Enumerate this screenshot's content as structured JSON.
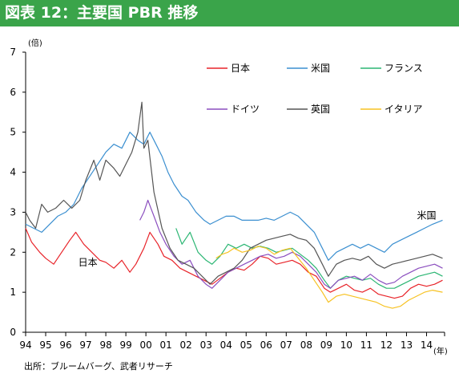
{
  "header": {
    "title": "図表 12：主要国 PBR 推移"
  },
  "source": "出所：ブルームバーグ、武者リサーチ",
  "colors": {
    "日本": "#e8242a",
    "米国": "#3b8fd0",
    "フランス": "#2bb673",
    "ドイツ": "#8b4fbf",
    "英国": "#555555",
    "イタリア": "#f7c222"
  },
  "chart_data": {
    "type": "line",
    "title": "",
    "xlabel": "(年)",
    "ylabel": "(倍)",
    "ylim": [
      0,
      7
    ],
    "xlim": [
      1994,
      2014.9
    ],
    "yticks": [
      "0",
      "1",
      "2",
      "3",
      "4",
      "5",
      "6",
      "7"
    ],
    "xticks": [
      "94",
      "95",
      "96",
      "97",
      "98",
      "99",
      "00",
      "01",
      "02",
      "03",
      "04",
      "05",
      "06",
      "07",
      "08",
      "09",
      "10",
      "11",
      "12",
      "13",
      "14"
    ],
    "annotations": [
      {
        "text": "日本",
        "x": 1997.1,
        "y": 1.75
      },
      {
        "text": "米国",
        "x": 2014.0,
        "y": 2.92
      }
    ],
    "legend_rows": [
      [
        "日本",
        "米国",
        "フランス"
      ],
      [
        "ドイツ",
        "英国",
        "イタリア"
      ]
    ],
    "series": [
      {
        "name": "日本",
        "x": [
          1994,
          1994.3,
          1994.7,
          1995.0,
          1995.4,
          1995.8,
          1996.2,
          1996.5,
          1996.9,
          1997.3,
          1997.7,
          1998.0,
          1998.4,
          1998.8,
          1999.2,
          1999.5,
          1999.9,
          2000.2,
          2000.6,
          2000.9,
          2001.3,
          2001.7,
          2002.1,
          2002.5,
          2002.9,
          2003.3,
          2003.7,
          2004.1,
          2004.5,
          2004.9,
          2005.3,
          2005.7,
          2006.1,
          2006.5,
          2006.9,
          2007.3,
          2007.7,
          2008.1,
          2008.5,
          2008.9,
          2009.2,
          2009.6,
          2010.0,
          2010.4,
          2010.8,
          2011.2,
          2011.6,
          2012.0,
          2012.4,
          2012.8,
          2013.2,
          2013.6,
          2014.0,
          2014.4,
          2014.8
        ],
        "values": [
          2.6,
          2.25,
          2.0,
          1.85,
          1.7,
          2.0,
          2.3,
          2.5,
          2.2,
          2.0,
          1.8,
          1.75,
          1.6,
          1.8,
          1.5,
          1.7,
          2.1,
          2.5,
          2.2,
          1.9,
          1.8,
          1.6,
          1.5,
          1.4,
          1.3,
          1.2,
          1.35,
          1.5,
          1.6,
          1.55,
          1.7,
          1.9,
          1.85,
          1.7,
          1.75,
          1.8,
          1.7,
          1.5,
          1.4,
          1.1,
          1.0,
          1.1,
          1.2,
          1.05,
          1.0,
          1.1,
          0.95,
          0.9,
          0.85,
          0.9,
          1.1,
          1.2,
          1.15,
          1.2,
          1.3
        ]
      },
      {
        "name": "米国",
        "x": [
          1994,
          1994.4,
          1994.8,
          1995.2,
          1995.6,
          1996.0,
          1996.4,
          1996.8,
          1997.2,
          1997.6,
          1998.0,
          1998.4,
          1998.8,
          1999.2,
          1999.6,
          1999.9,
          2000.2,
          2000.5,
          2000.8,
          2001.1,
          2001.4,
          2001.8,
          2002.1,
          2002.5,
          2002.9,
          2003.2,
          2003.6,
          2004.0,
          2004.4,
          2004.8,
          2005.2,
          2005.6,
          2006.0,
          2006.4,
          2006.8,
          2007.2,
          2007.6,
          2008.0,
          2008.4,
          2008.8,
          2009.1,
          2009.5,
          2009.9,
          2010.3,
          2010.7,
          2011.1,
          2011.5,
          2011.9,
          2012.3,
          2012.7,
          2013.1,
          2013.5,
          2013.9,
          2014.3,
          2014.8
        ],
        "values": [
          2.7,
          2.6,
          2.5,
          2.7,
          2.9,
          3.0,
          3.2,
          3.6,
          3.9,
          4.2,
          4.5,
          4.7,
          4.6,
          5.0,
          4.8,
          4.7,
          5.0,
          4.7,
          4.4,
          4.0,
          3.7,
          3.4,
          3.3,
          3.0,
          2.8,
          2.7,
          2.8,
          2.9,
          2.9,
          2.8,
          2.8,
          2.8,
          2.85,
          2.8,
          2.9,
          3.0,
          2.9,
          2.7,
          2.5,
          2.1,
          1.8,
          2.0,
          2.1,
          2.2,
          2.1,
          2.2,
          2.1,
          2.0,
          2.2,
          2.3,
          2.4,
          2.5,
          2.6,
          2.7,
          2.8
        ]
      },
      {
        "name": "フランス",
        "x": [
          2001.5,
          2001.8,
          2002.2,
          2002.6,
          2003.0,
          2003.3,
          2003.7,
          2004.1,
          2004.5,
          2004.9,
          2005.3,
          2005.7,
          2006.1,
          2006.5,
          2006.9,
          2007.3,
          2007.7,
          2008.1,
          2008.5,
          2008.9,
          2009.2,
          2009.6,
          2010.0,
          2010.4,
          2010.8,
          2011.2,
          2011.6,
          2012.0,
          2012.4,
          2012.8,
          2013.2,
          2013.6,
          2014.0,
          2014.4,
          2014.8
        ],
        "values": [
          2.6,
          2.2,
          2.5,
          2.0,
          1.8,
          1.7,
          1.9,
          2.2,
          2.1,
          2.2,
          2.1,
          2.15,
          2.1,
          2.0,
          2.05,
          2.1,
          1.95,
          1.8,
          1.6,
          1.3,
          1.1,
          1.3,
          1.4,
          1.35,
          1.3,
          1.35,
          1.2,
          1.1,
          1.1,
          1.2,
          1.3,
          1.4,
          1.45,
          1.5,
          1.4
        ]
      },
      {
        "name": "ドイツ",
        "x": [
          1999.7,
          1999.9,
          2000.1,
          2000.4,
          2000.7,
          2001.0,
          2001.4,
          2001.8,
          2002.2,
          2002.6,
          2003.0,
          2003.3,
          2003.7,
          2004.1,
          2004.5,
          2004.9,
          2005.3,
          2005.7,
          2006.1,
          2006.5,
          2006.9,
          2007.3,
          2007.7,
          2008.1,
          2008.5,
          2008.9,
          2009.2,
          2009.6,
          2010.0,
          2010.4,
          2010.8,
          2011.2,
          2011.6,
          2012.0,
          2012.4,
          2012.8,
          2013.2,
          2013.6,
          2014.0,
          2014.4,
          2014.8
        ],
        "values": [
          2.8,
          3.0,
          3.3,
          2.9,
          2.5,
          2.2,
          1.9,
          1.7,
          1.8,
          1.4,
          1.2,
          1.1,
          1.3,
          1.5,
          1.6,
          1.7,
          1.8,
          1.9,
          1.95,
          1.85,
          1.9,
          2.0,
          1.9,
          1.7,
          1.5,
          1.2,
          1.1,
          1.3,
          1.35,
          1.4,
          1.3,
          1.45,
          1.3,
          1.2,
          1.25,
          1.4,
          1.5,
          1.6,
          1.65,
          1.7,
          1.6
        ]
      },
      {
        "name": "英国",
        "x": [
          1994,
          1994.2,
          1994.5,
          1994.8,
          1995.1,
          1995.5,
          1995.9,
          1996.3,
          1996.7,
          1997.0,
          1997.4,
          1997.7,
          1998.0,
          1998.4,
          1998.7,
          1999.0,
          1999.3,
          1999.6,
          1999.8,
          1999.9,
          2000.1,
          2000.4,
          2000.8,
          2001.2,
          2001.6,
          2002.0,
          2002.4,
          2002.8,
          2003.2,
          2003.6,
          2004.0,
          2004.4,
          2004.8,
          2005.2,
          2005.6,
          2006.0,
          2006.4,
          2006.8,
          2007.2,
          2007.6,
          2008.0,
          2008.4,
          2008.8,
          2009.1,
          2009.5,
          2009.9,
          2010.3,
          2010.7,
          2011.1,
          2011.5,
          2011.9,
          2012.3,
          2012.7,
          2013.1,
          2013.5,
          2013.9,
          2014.3,
          2014.8
        ],
        "values": [
          3.0,
          2.8,
          2.6,
          3.2,
          3.0,
          3.1,
          3.3,
          3.1,
          3.3,
          3.8,
          4.3,
          3.8,
          4.3,
          4.1,
          3.9,
          4.2,
          4.5,
          5.0,
          5.75,
          4.6,
          4.8,
          3.5,
          2.6,
          2.1,
          1.8,
          1.7,
          1.6,
          1.4,
          1.2,
          1.4,
          1.5,
          1.6,
          1.8,
          2.1,
          2.2,
          2.3,
          2.35,
          2.4,
          2.45,
          2.35,
          2.3,
          2.1,
          1.7,
          1.4,
          1.7,
          1.8,
          1.85,
          1.8,
          1.9,
          1.7,
          1.6,
          1.7,
          1.75,
          1.8,
          1.85,
          1.9,
          1.95,
          1.85
        ]
      },
      {
        "name": "イタリア",
        "x": [
          2003.5,
          2003.8,
          2004.1,
          2004.4,
          2004.8,
          2005.2,
          2005.6,
          2006.0,
          2006.4,
          2006.8,
          2007.2,
          2007.6,
          2008.0,
          2008.4,
          2008.8,
          2009.1,
          2009.5,
          2009.9,
          2010.3,
          2010.7,
          2011.1,
          2011.5,
          2011.9,
          2012.3,
          2012.7,
          2013.1,
          2013.5,
          2013.9,
          2014.3,
          2014.8
        ],
        "values": [
          1.85,
          1.95,
          2.0,
          2.1,
          2.0,
          2.05,
          2.15,
          2.1,
          1.95,
          2.05,
          2.1,
          1.85,
          1.6,
          1.3,
          1.0,
          0.75,
          0.9,
          0.95,
          0.9,
          0.85,
          0.8,
          0.75,
          0.65,
          0.6,
          0.65,
          0.8,
          0.9,
          1.0,
          1.05,
          1.0
        ]
      }
    ]
  }
}
